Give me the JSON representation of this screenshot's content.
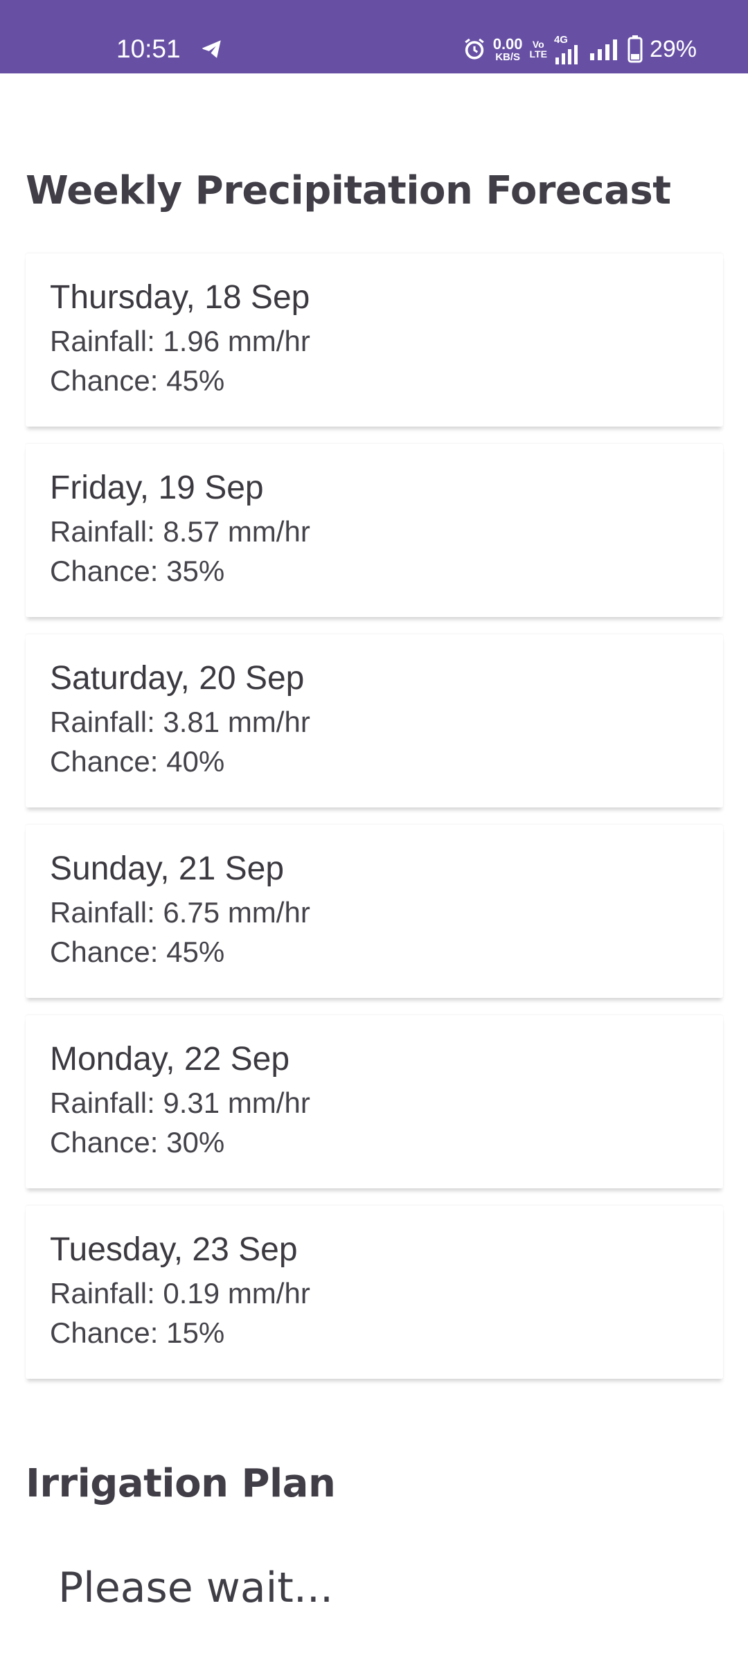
{
  "status_bar": {
    "time": "10:51",
    "net_speed_value": "0.00",
    "net_speed_unit": "KB/S",
    "volte_top": "Vo",
    "volte_bottom": "LTE",
    "network_type": "4G",
    "battery": "29%",
    "icons": [
      "telegram-icon",
      "alarm-icon",
      "signal-icon",
      "battery-icon"
    ],
    "background": "#6750a4"
  },
  "weekly": {
    "title": "Weekly Precipitation Forecast",
    "days": [
      {
        "day": "Thursday, 18 Sep",
        "rainfall": "Rainfall: 1.96 mm/hr",
        "chance": "Chance: 45%"
      },
      {
        "day": "Friday, 19 Sep",
        "rainfall": "Rainfall: 8.57 mm/hr",
        "chance": "Chance: 35%"
      },
      {
        "day": "Saturday, 20 Sep",
        "rainfall": "Rainfall: 3.81 mm/hr",
        "chance": "Chance: 40%"
      },
      {
        "day": "Sunday, 21 Sep",
        "rainfall": "Rainfall: 6.75 mm/hr",
        "chance": "Chance: 45%"
      },
      {
        "day": "Monday, 22 Sep",
        "rainfall": "Rainfall: 9.31 mm/hr",
        "chance": "Chance: 30%"
      },
      {
        "day": "Tuesday, 23 Sep",
        "rainfall": "Rainfall: 0.19 mm/hr",
        "chance": "Chance: 15%"
      }
    ]
  },
  "irrigation": {
    "title": "Irrigation Plan",
    "status": "Please wait..."
  }
}
